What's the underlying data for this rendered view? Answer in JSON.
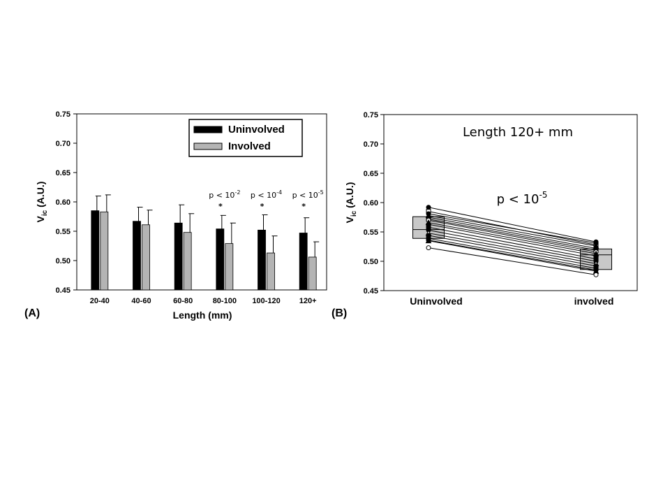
{
  "panel_a_label": "(A)",
  "panel_b_label": "(B)",
  "chart_data": [
    {
      "type": "bar",
      "panel": "A",
      "xlabel": "Length (mm)",
      "ylabel_main": "V",
      "ylabel_sub": "ic",
      "ylabel_rest": " (A.U.)",
      "ylim": [
        0.45,
        0.75
      ],
      "yticks": [
        "0.45",
        "0.50",
        "0.55",
        "0.60",
        "0.65",
        "0.70",
        "0.75"
      ],
      "categories": [
        "20-40",
        "40-60",
        "60-80",
        "80-100",
        "100-120",
        "120+"
      ],
      "series": [
        {
          "name": "Uninvolved",
          "color": "#000000",
          "values": [
            0.585,
            0.567,
            0.564,
            0.554,
            0.552,
            0.547
          ],
          "errors": [
            0.025,
            0.024,
            0.031,
            0.023,
            0.026,
            0.026
          ]
        },
        {
          "name": "Involved",
          "color": "#b4b4b4",
          "values": [
            0.583,
            0.561,
            0.548,
            0.529,
            0.513,
            0.506
          ],
          "errors": [
            0.029,
            0.025,
            0.032,
            0.035,
            0.029,
            0.026
          ]
        }
      ],
      "legend_position": "top-right",
      "annotations": [
        {
          "category": "80-100",
          "text": "p < 10",
          "exp": "-2",
          "star": "*"
        },
        {
          "category": "100-120",
          "text": "p < 10",
          "exp": "-4",
          "star": "*"
        },
        {
          "category": "120+",
          "text": "p < 10",
          "exp": "-5",
          "star": "*"
        }
      ]
    },
    {
      "type": "box-paired",
      "panel": "B",
      "title": "Length 120+ mm",
      "annotation": {
        "text": "p < 10",
        "exp": "-5"
      },
      "ylabel_main": "V",
      "ylabel_sub": "ic",
      "ylabel_rest": " (A.U.)",
      "ylim": [
        0.45,
        0.75
      ],
      "yticks": [
        "0.45",
        "0.50",
        "0.55",
        "0.60",
        "0.65",
        "0.70",
        "0.75"
      ],
      "categories": [
        "Uninvolved",
        "involved"
      ],
      "boxes": [
        {
          "q1": 0.539,
          "median": 0.554,
          "q3": 0.576,
          "color": "#c8c8c8"
        },
        {
          "q1": 0.486,
          "median": 0.511,
          "q3": 0.521,
          "color": "#c8c8c8"
        }
      ],
      "pairs": [
        [
          0.592,
          0.533
        ],
        [
          0.585,
          0.528
        ],
        [
          0.581,
          0.531
        ],
        [
          0.578,
          0.526
        ],
        [
          0.575,
          0.522
        ],
        [
          0.572,
          0.519
        ],
        [
          0.57,
          0.516
        ],
        [
          0.566,
          0.513
        ],
        [
          0.563,
          0.509
        ],
        [
          0.558,
          0.504
        ],
        [
          0.553,
          0.5
        ],
        [
          0.548,
          0.496
        ],
        [
          0.544,
          0.492
        ],
        [
          0.539,
          0.488
        ],
        [
          0.536,
          0.485
        ],
        [
          0.535,
          0.483
        ],
        [
          0.523,
          0.477
        ]
      ]
    }
  ]
}
